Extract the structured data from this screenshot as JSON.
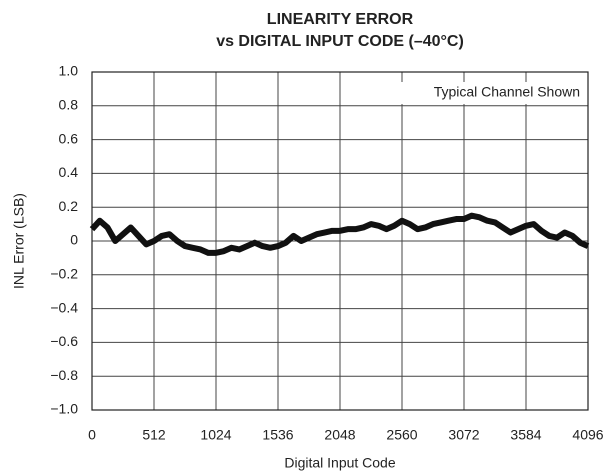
{
  "chart_data": {
    "type": "line",
    "title": "LINEARITY ERROR",
    "subtitle": "vs DIGITAL INPUT CODE (–40°C)",
    "x_label": "Digital Input Code",
    "y_label": "INL Error (LSB)",
    "annotation": "Typical Channel Shown",
    "x": [
      0,
      64,
      128,
      192,
      256,
      320,
      384,
      448,
      512,
      576,
      640,
      704,
      768,
      832,
      896,
      960,
      1024,
      1088,
      1152,
      1216,
      1280,
      1344,
      1408,
      1472,
      1536,
      1600,
      1664,
      1728,
      1792,
      1856,
      1920,
      1984,
      2048,
      2112,
      2176,
      2240,
      2304,
      2368,
      2432,
      2496,
      2560,
      2624,
      2688,
      2752,
      2816,
      2880,
      2944,
      3008,
      3072,
      3136,
      3200,
      3264,
      3328,
      3392,
      3456,
      3520,
      3584,
      3648,
      3712,
      3776,
      3840,
      3904,
      3968,
      4032,
      4096
    ],
    "series": [
      {
        "color": "#111111",
        "values": [
          0.07,
          0.12,
          0.08,
          0.0,
          0.04,
          0.08,
          0.03,
          -0.02,
          0.0,
          0.03,
          0.04,
          0.0,
          -0.03,
          -0.04,
          -0.05,
          -0.07,
          -0.07,
          -0.06,
          -0.04,
          -0.05,
          -0.03,
          -0.01,
          -0.03,
          -0.04,
          -0.03,
          -0.01,
          0.03,
          0.0,
          0.02,
          0.04,
          0.05,
          0.06,
          0.06,
          0.07,
          0.07,
          0.08,
          0.1,
          0.09,
          0.07,
          0.09,
          0.12,
          0.1,
          0.07,
          0.08,
          0.1,
          0.11,
          0.12,
          0.13,
          0.13,
          0.15,
          0.14,
          0.12,
          0.11,
          0.08,
          0.05,
          0.07,
          0.09,
          0.1,
          0.06,
          0.03,
          0.02,
          0.05,
          0.03,
          -0.01,
          -0.03
        ]
      }
    ],
    "xlim": [
      0,
      4096
    ],
    "xticks": [
      0,
      512,
      1024,
      1536,
      2048,
      2560,
      3072,
      3584,
      4096
    ],
    "ylim": [
      -1,
      1
    ],
    "yticks": [
      {
        "value": -1,
        "label": "−1.0"
      },
      {
        "value": -0.8,
        "label": "−0.8"
      },
      {
        "value": -0.6,
        "label": "−0.6"
      },
      {
        "value": -0.4,
        "label": "−0.4"
      },
      {
        "value": -0.2,
        "label": "−0.2"
      },
      0,
      0.2,
      0.4,
      0.6,
      0.8,
      {
        "value": 1,
        "label": "1.0"
      }
    ],
    "grid": true
  }
}
